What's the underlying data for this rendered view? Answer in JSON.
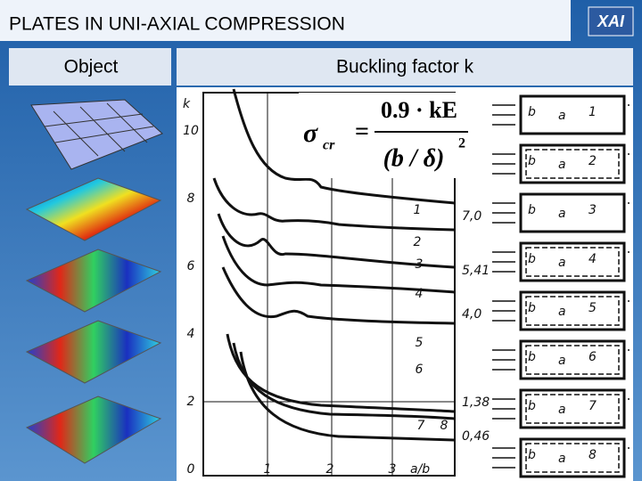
{
  "header": {
    "title": "PLATES IN UNI-AXIAL COMPRESSION"
  },
  "table": {
    "columns": [
      "Object",
      "Buckling factor k"
    ]
  },
  "figure": {
    "y_axis_label": "k",
    "y_ticks": [
      "0",
      "2",
      "4",
      "6",
      "8",
      "10"
    ],
    "x_ticks": [
      "1",
      "2",
      "3"
    ],
    "x_axis_label": "a/b",
    "curve_labels": [
      "1",
      "2",
      "3",
      "4",
      "5",
      "6",
      "7",
      "8"
    ],
    "asymptote_labels": [
      "7,0",
      "5,41",
      "4,0",
      "1,38",
      "0,46"
    ],
    "formula": {
      "lhs": "σ",
      "sub": "cr",
      "eq": "=",
      "numerator": "0.9 · kE",
      "denominator": "(b / δ)",
      "exponent": "2"
    }
  },
  "panels": [
    {
      "b": "b",
      "a": "a",
      "n": "1"
    },
    {
      "b": "b",
      "a": "a",
      "n": "2"
    },
    {
      "b": "b",
      "a": "a",
      "n": "3"
    },
    {
      "b": "b",
      "a": "a",
      "n": "4"
    },
    {
      "b": "b",
      "a": "a",
      "n": "5"
    },
    {
      "b": "b",
      "a": "a",
      "n": "6"
    },
    {
      "b": "b",
      "a": "a",
      "n": "7"
    },
    {
      "b": "b",
      "a": "a",
      "n": "8"
    }
  ]
}
